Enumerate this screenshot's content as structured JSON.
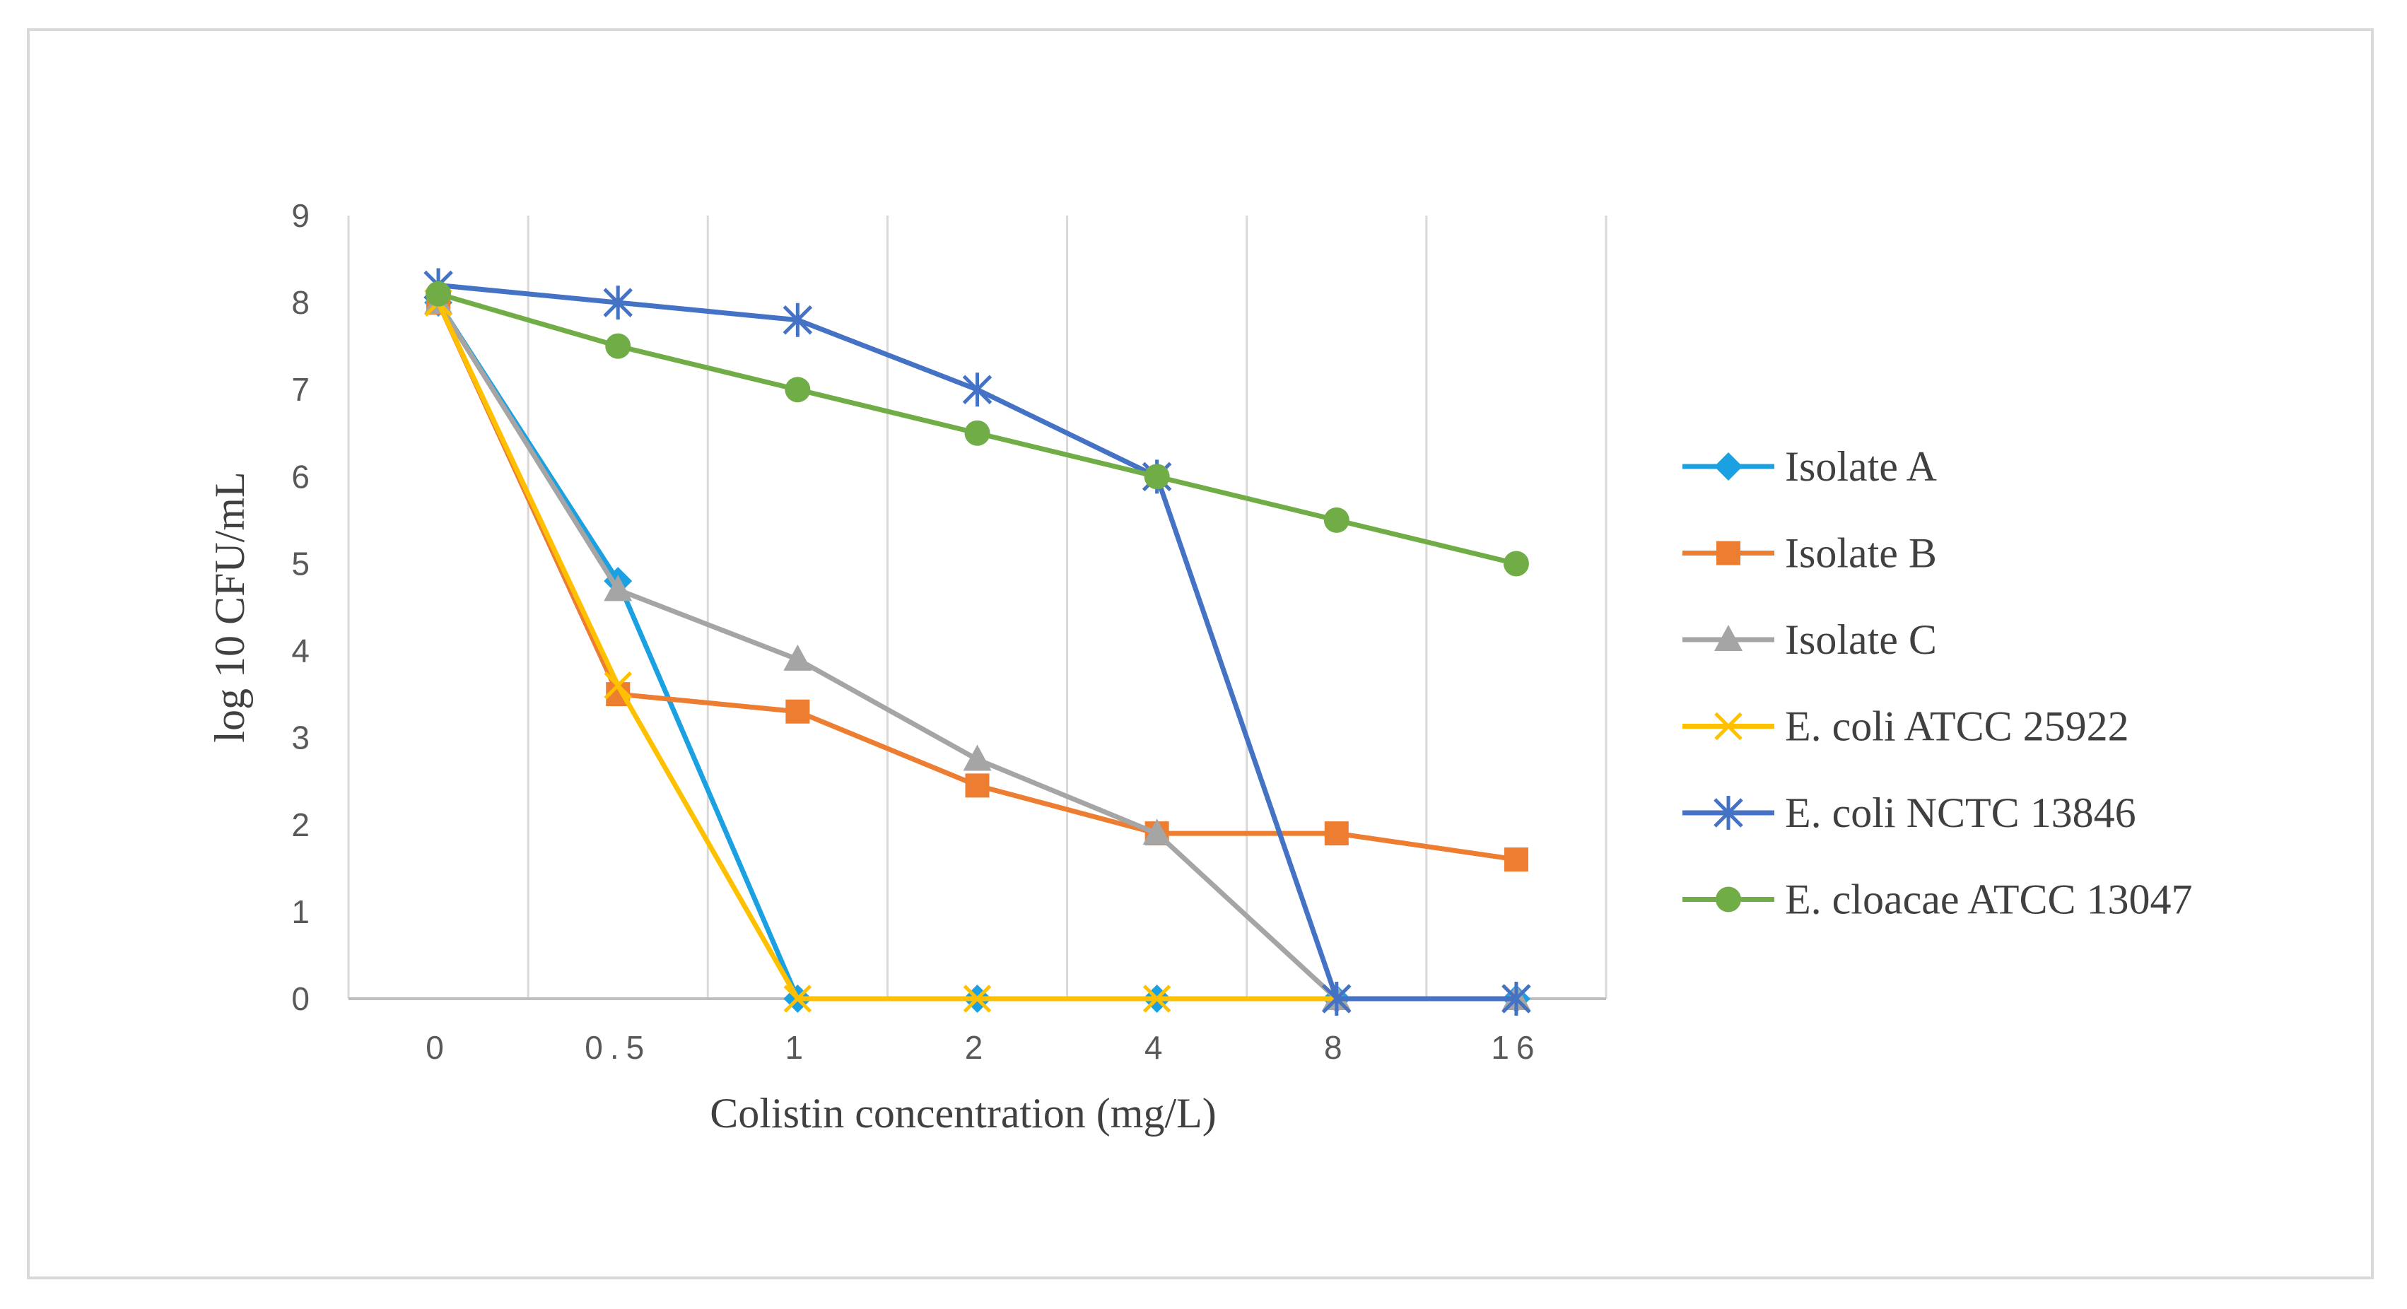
{
  "chart_data": {
    "type": "line",
    "title": "",
    "xlabel": "Colistin concentration (mg/L)",
    "ylabel": "log 10 CFU/mL",
    "categories": [
      "0",
      "0.5",
      "1",
      "2",
      "4",
      "8",
      "16"
    ],
    "ylim": [
      0,
      9
    ],
    "yticks": [
      "0",
      "1",
      "2",
      "3",
      "4",
      "5",
      "6",
      "7",
      "8",
      "9"
    ],
    "grid": "vertical",
    "legend_position": "right",
    "series": [
      {
        "name": "Isolate A",
        "values": [
          8.0,
          4.8,
          0,
          0,
          0,
          0,
          0
        ],
        "color": "#1BA1E2",
        "marker": "diamond"
      },
      {
        "name": "Isolate B",
        "values": [
          8.0,
          3.5,
          3.3,
          2.45,
          1.9,
          1.9,
          1.6
        ],
        "color": "#ED7D31",
        "marker": "square"
      },
      {
        "name": "Isolate C",
        "values": [
          8.0,
          4.7,
          3.9,
          2.75,
          1.9,
          0,
          0
        ],
        "color": "#A5A5A5",
        "marker": "triangle"
      },
      {
        "name": "E. coli ATCC 25922",
        "values": [
          8.0,
          3.6,
          0,
          0,
          0,
          0,
          0
        ],
        "color": "#FFC000",
        "marker": "x"
      },
      {
        "name": "E. coli NCTC 13846",
        "values": [
          8.2,
          8.0,
          7.8,
          7.0,
          6.0,
          0,
          0
        ],
        "color": "#4472C4",
        "marker": "star"
      },
      {
        "name": "E. cloacae ATCC 13047",
        "values": [
          8.1,
          7.5,
          7.0,
          6.5,
          6.0,
          5.5,
          5.0
        ],
        "color": "#70AD47",
        "marker": "circle"
      }
    ]
  }
}
